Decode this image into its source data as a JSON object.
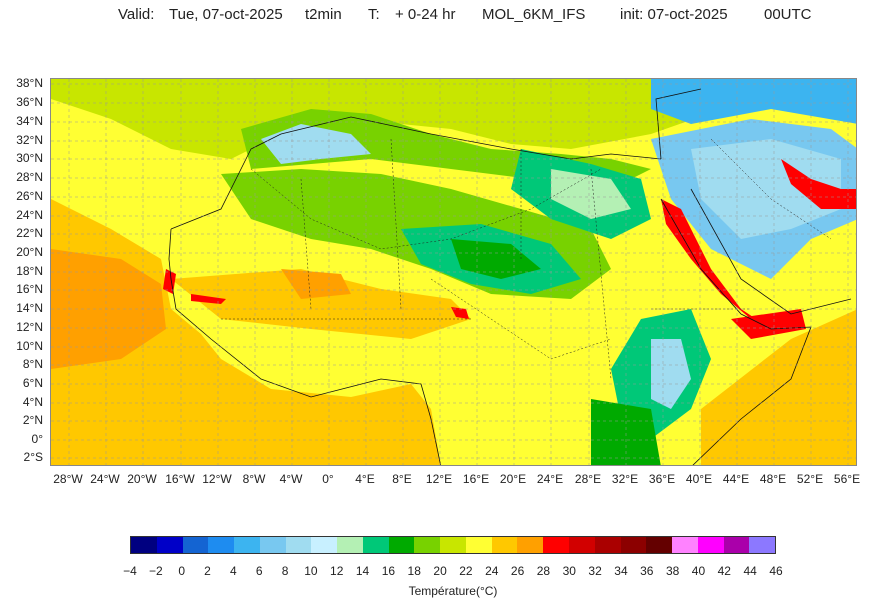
{
  "header": {
    "valid_label": "Valid:",
    "valid_date": "Tue, 07-oct-2025",
    "variable": "t2min",
    "t_label": "T:",
    "t_range": "+ 0-24 hr",
    "model": "MOL_6KM_IFS",
    "init": "init: 07-oct-2025",
    "run": "00UTC"
  },
  "map": {
    "lat_labels": [
      "38°N",
      "36°N",
      "34°N",
      "32°N",
      "30°N",
      "28°N",
      "26°N",
      "24°N",
      "22°N",
      "20°N",
      "18°N",
      "16°N",
      "14°N",
      "12°N",
      "10°N",
      "8°N",
      "6°N",
      "4°N",
      "2°N",
      "0°",
      "2°S"
    ],
    "lon_labels": [
      "28°W",
      "24°W",
      "20°W",
      "16°W",
      "12°W",
      "8°W",
      "4°W",
      "0°",
      "4°E",
      "8°E",
      "12°E",
      "16°E",
      "20°E",
      "24°E",
      "28°E",
      "32°E",
      "36°E",
      "40°E",
      "44°E",
      "48°E",
      "52°E",
      "56°E"
    ],
    "grid": "dashed"
  },
  "colorbar": {
    "title": "Température(°C)",
    "ticks": [
      "−4",
      "−2",
      "0",
      "2",
      "4",
      "6",
      "8",
      "10",
      "12",
      "14",
      "16",
      "18",
      "20",
      "22",
      "24",
      "26",
      "28",
      "30",
      "32",
      "34",
      "36",
      "38",
      "40",
      "42",
      "44",
      "46"
    ],
    "colors": [
      "#000080",
      "#0000c8",
      "#1464d2",
      "#1e8cf0",
      "#3cb4f0",
      "#78c8f0",
      "#a0dcf0",
      "#c8f0ff",
      "#b4f0b4",
      "#00c878",
      "#00aa00",
      "#78d200",
      "#c8e600",
      "#ffff33",
      "#ffc800",
      "#ffa000",
      "#ff0000",
      "#d20000",
      "#aa0000",
      "#8c0000",
      "#640000",
      "#ff82ff",
      "#ff00ff",
      "#aa00aa",
      "#8c78ff"
    ]
  }
}
